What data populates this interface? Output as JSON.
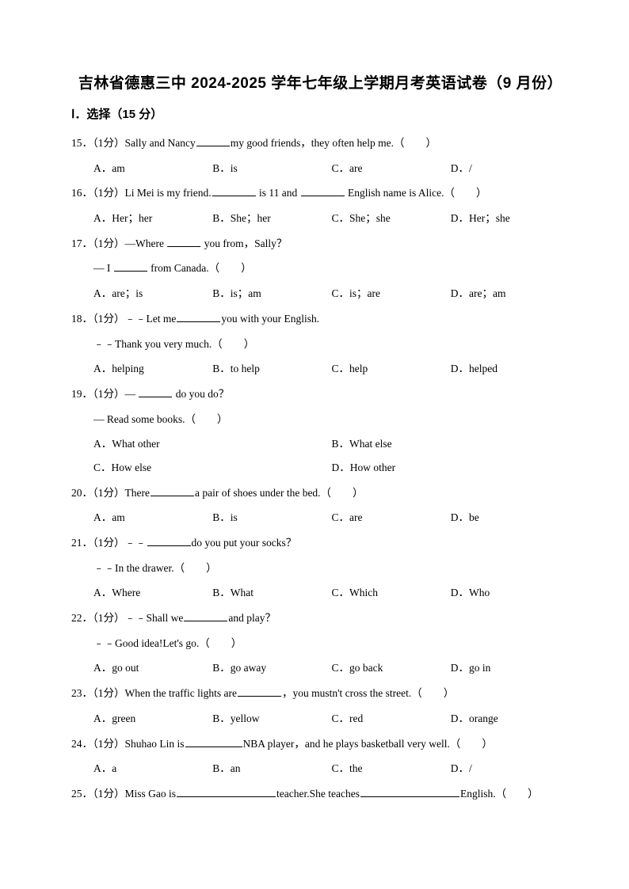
{
  "title": "吉林省德惠三中 2024-2025 学年七年级上学期月考英语试卷（9 月份）",
  "section": "Ⅰ．选择（15 分）",
  "q15": {
    "num": "15．（1分）",
    "s1": "Sally and Nancy",
    "s2": "my good friends，they often help me.（　　）",
    "A": "A．am",
    "B": "B．is",
    "C": "C．are",
    "D": "D．/"
  },
  "q16": {
    "num": "16．（1分）",
    "s1": "Li Mei is my friend.",
    "s2": " is 11 and ",
    "s3": " English name is Alice.（　　）",
    "A": "A．Her；her",
    "B": "B．She；her",
    "C": "C．She；she",
    "D": "D．Her；she"
  },
  "q17": {
    "num": "17．（1分）",
    "s1": "—Where ",
    "s2": " you from，Sally？",
    "sub1a": "— I ",
    "sub1b": " from Canada.（　　）",
    "A": "A．are；is",
    "B": "B．is；am",
    "C": "C．is；are",
    "D": "D．are；am"
  },
  "q18": {
    "num": "18．（1分）",
    "s1": "﹣﹣Let me",
    "s2": "you with your English.",
    "sub1": "﹣﹣Thank you very much.（　　）",
    "A": "A．helping",
    "B": "B．to help",
    "C": "C．help",
    "D": "D．helped"
  },
  "q19": {
    "num": "19．（1分）",
    "s1": "— ",
    "s2": " do you do？",
    "sub1": "— Read some books.（　　）",
    "A": "A．What other",
    "B": "B．What else",
    "C": "C．How else",
    "D": "D．How other"
  },
  "q20": {
    "num": "20．（1分）",
    "s1": "There",
    "s2": "a pair of shoes under the bed.（　　）",
    "A": "A．am",
    "B": "B．is",
    "C": "C．are",
    "D": "D．be"
  },
  "q21": {
    "num": "21．（1分）",
    "s1": "﹣﹣",
    "s2": "do you put your socks？",
    "sub1": "﹣﹣In the drawer.（　　）",
    "A": "A．Where",
    "B": "B．What",
    "C": "C．Which",
    "D": "D．Who"
  },
  "q22": {
    "num": "22．（1分）",
    "s1": "﹣﹣Shall we",
    "s2": "and play？",
    "sub1": "﹣﹣Good idea!Let's go.（　　）",
    "A": "A．go out",
    "B": "B．go away",
    "C": "C．go back",
    "D": "D．go in"
  },
  "q23": {
    "num": "23．（1分）",
    "s1": "When the traffic lights are",
    "s2": "，you mustn't cross the street.（　　）",
    "A": "A．green",
    "B": "B．yellow",
    "C": "C．red",
    "D": "D．orange"
  },
  "q24": {
    "num": "24．（1分）",
    "s1": "Shuhao Lin is",
    "s2": "NBA player，and he plays basketball very well.（　　）",
    "A": "A．a",
    "B": "B．an",
    "C": "C．the",
    "D": "D．/"
  },
  "q25": {
    "num": "25．（1分）",
    "s1": "Miss Gao is",
    "s2": "teacher.She teaches",
    "s3": "English.（　　）"
  }
}
